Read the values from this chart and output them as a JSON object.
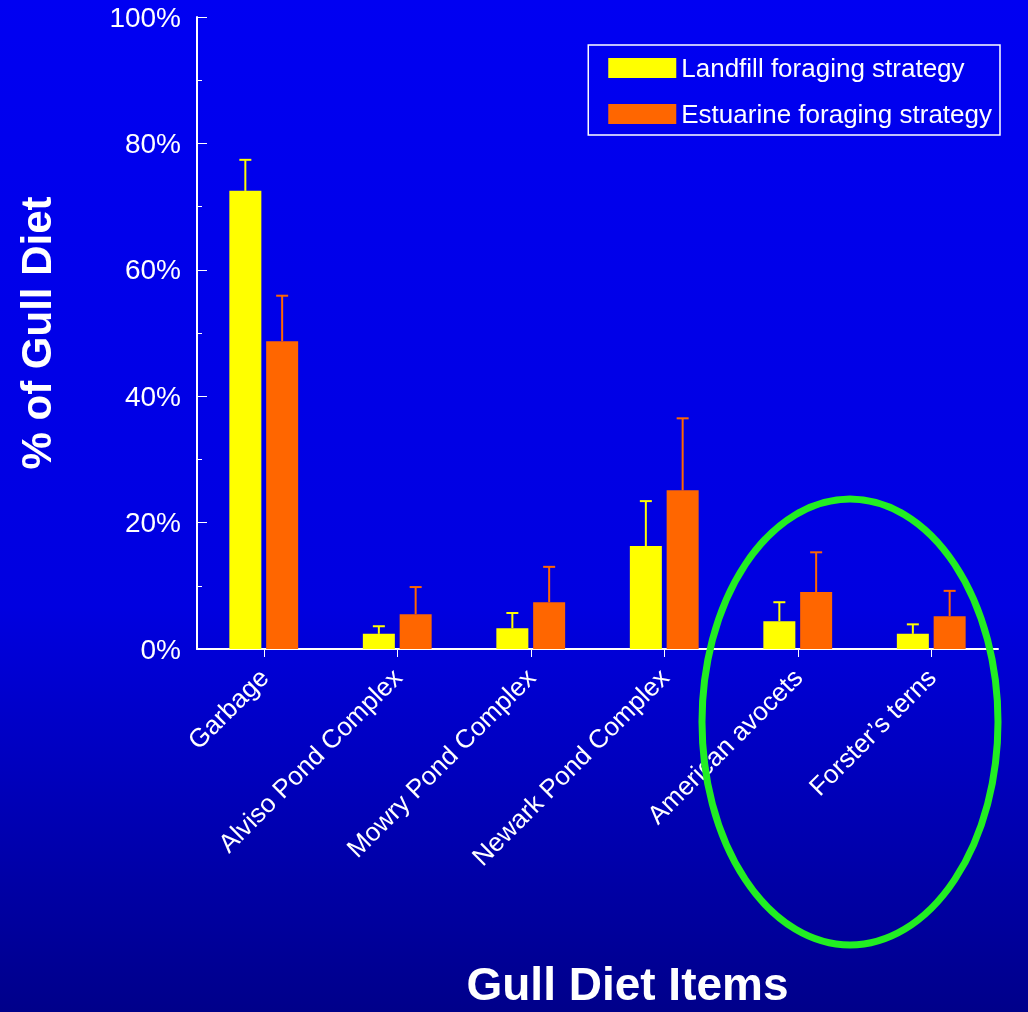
{
  "chart_data": {
    "type": "bar",
    "xlabel": "Gull Diet Items",
    "ylabel": "% of Gull Diet",
    "categories": [
      "Garbage",
      "Alviso Pond Complex",
      "Mowry Pond Complex",
      "Newark Pond Complex",
      "American avocets",
      "Forster’s terns"
    ],
    "series": [
      {
        "name": "Landfill foraging strategy",
        "color": "#ffff00",
        "values": [
          72.5,
          2.4,
          3.3,
          16.3,
          4.4,
          2.4
        ],
        "errors": [
          [
            72.5,
            77.4
          ],
          [
            2.4,
            3.6
          ],
          [
            3.3,
            5.7
          ],
          [
            16.3,
            23.4
          ],
          [
            4.4,
            7.4
          ],
          [
            2.4,
            3.9
          ]
        ]
      },
      {
        "name": "Estuarine foraging strategy",
        "color": "#ff6600",
        "values": [
          48.7,
          5.5,
          7.4,
          25.1,
          9.0,
          5.2
        ],
        "errors": [
          [
            48.7,
            55.9
          ],
          [
            5.5,
            9.8
          ],
          [
            7.4,
            13.0
          ],
          [
            25.1,
            36.5
          ],
          [
            9.0,
            15.3
          ],
          [
            5.2,
            9.2
          ]
        ]
      }
    ],
    "ylim": [
      0,
      100
    ],
    "yticks": [
      {
        "value": 0,
        "label": "0%"
      },
      {
        "value": 20,
        "label": "20%"
      },
      {
        "value": 40,
        "label": "40%"
      },
      {
        "value": 60,
        "label": "60%"
      },
      {
        "value": 80,
        "label": "80%"
      },
      {
        "value": 100,
        "label": "100%"
      }
    ],
    "grid": false,
    "legend": "top right"
  }
}
